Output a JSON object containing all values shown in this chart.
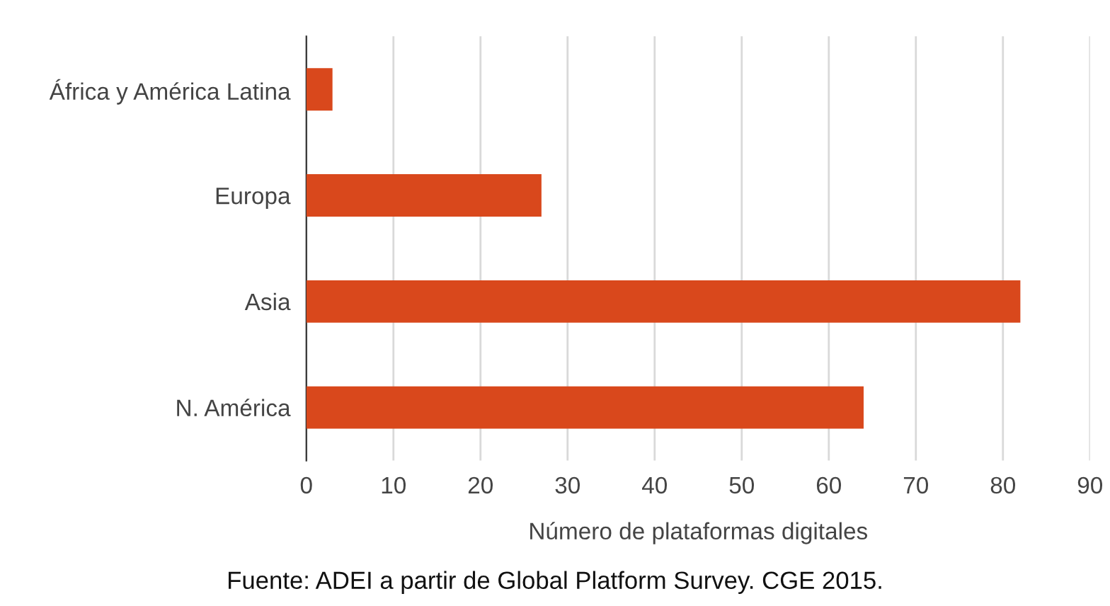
{
  "chart_data": {
    "type": "bar",
    "orientation": "horizontal",
    "categories": [
      "África y América Latina",
      "Europa",
      "Asia",
      "N. América"
    ],
    "values": [
      3,
      27,
      82,
      64
    ],
    "color": "#d9481c",
    "xlim": [
      0,
      90
    ],
    "xticks": [
      0,
      10,
      20,
      30,
      40,
      50,
      60,
      70,
      80,
      90
    ],
    "grid": "x",
    "xlabel": "Número de plataformas digitales",
    "annotations": [
      "Fuente: ADEI a partir de Global Platform Survey. CGE 2015."
    ]
  }
}
